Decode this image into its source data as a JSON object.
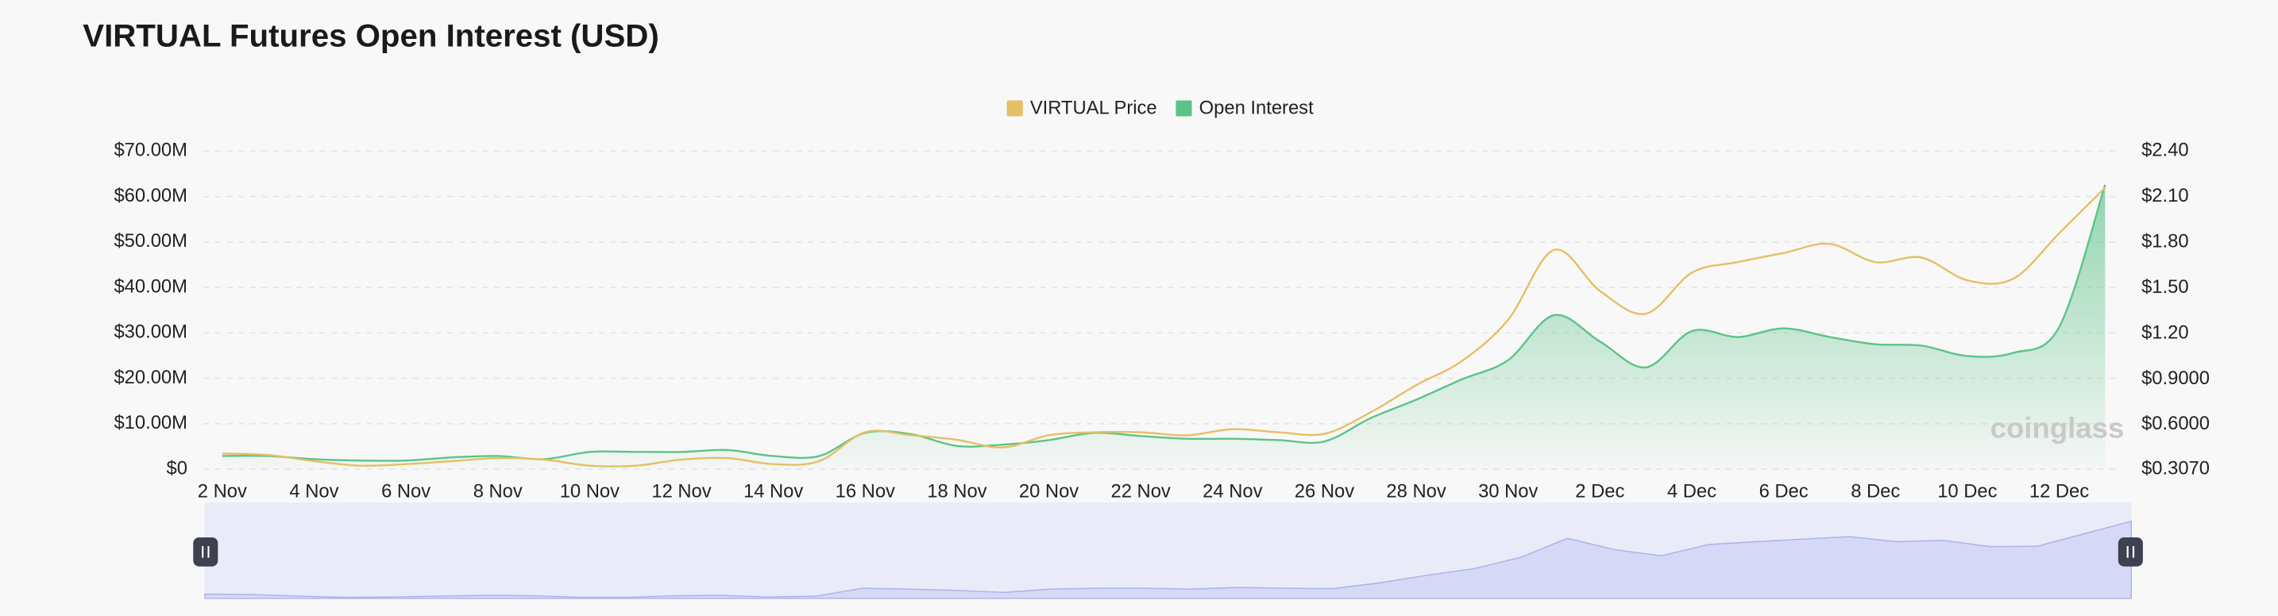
{
  "chart_data": {
    "type": "line",
    "title": "VIRTUAL Futures Open Interest (USD)",
    "categories": [
      "2 Nov",
      null,
      "4 Nov",
      null,
      "6 Nov",
      null,
      "8 Nov",
      null,
      "10 Nov",
      null,
      "12 Nov",
      null,
      "14 Nov",
      null,
      "16 Nov",
      null,
      "18 Nov",
      null,
      "20 Nov",
      null,
      "22 Nov",
      null,
      "24 Nov",
      null,
      "26 Nov",
      null,
      "28 Nov",
      null,
      "30 Nov",
      null,
      "2 Dec",
      null,
      "4 Dec",
      null,
      "6 Dec",
      null,
      "8 Dec",
      null,
      "10 Dec",
      null,
      "12 Dec",
      null
    ],
    "series": [
      {
        "name": "VIRTUAL Price",
        "color": "#e5bf63",
        "axis": "y2",
        "values": [
          0.41,
          0.4,
          0.36,
          0.33,
          0.34,
          0.36,
          0.38,
          0.37,
          0.33,
          0.33,
          0.37,
          0.38,
          0.34,
          0.36,
          0.55,
          0.53,
          0.5,
          0.45,
          0.53,
          0.55,
          0.55,
          0.53,
          0.57,
          0.55,
          0.54,
          0.68,
          0.86,
          1.02,
          1.29,
          1.75,
          1.48,
          1.33,
          1.6,
          1.67,
          1.73,
          1.79,
          1.67,
          1.7,
          1.55,
          1.56,
          1.86,
          2.16
        ]
      },
      {
        "name": "Open Interest",
        "color": "#5cc388",
        "values": [
          2900000,
          2900000,
          2200000,
          1900000,
          1900000,
          2600000,
          2900000,
          2200000,
          3800000,
          3800000,
          3800000,
          4200000,
          2900000,
          2900000,
          8000000,
          7700000,
          5100000,
          5400000,
          6400000,
          8000000,
          7300000,
          6700000,
          6700000,
          6400000,
          6100000,
          11200000,
          15300000,
          19800000,
          24000000,
          33900000,
          28100000,
          22400000,
          30400000,
          29100000,
          31000000,
          29100000,
          27500000,
          27200000,
          24900000,
          25600000,
          31300000,
          62600000
        ]
      }
    ],
    "ylim": [
      0,
      70000000
    ],
    "yticks": [
      {
        "value": 0,
        "label": "$0"
      },
      {
        "value": 10000000,
        "label": "$10.00M"
      },
      {
        "value": 20000000,
        "label": "$20.00M"
      },
      {
        "value": 30000000,
        "label": "$30.00M"
      },
      {
        "value": 40000000,
        "label": "$40.00M"
      },
      {
        "value": 50000000,
        "label": "$50.00M"
      },
      {
        "value": 60000000,
        "label": "$60.00M"
      },
      {
        "value": 70000000,
        "label": "$70.00M"
      }
    ],
    "y2lim": [
      0.307,
      2.4
    ],
    "y2ticks": [
      {
        "value": 0.307,
        "label": "$0.3070"
      },
      {
        "value": 0.6,
        "label": "$0.6000"
      },
      {
        "value": 0.9,
        "label": "$0.9000"
      },
      {
        "value": 1.2,
        "label": "$1.20"
      },
      {
        "value": 1.5,
        "label": "$1.50"
      },
      {
        "value": 1.8,
        "label": "$1.80"
      },
      {
        "value": 2.1,
        "label": "$2.10"
      },
      {
        "value": 2.4,
        "label": "$2.40"
      }
    ],
    "grid": true,
    "legend": "top",
    "watermark": "coinglass"
  }
}
